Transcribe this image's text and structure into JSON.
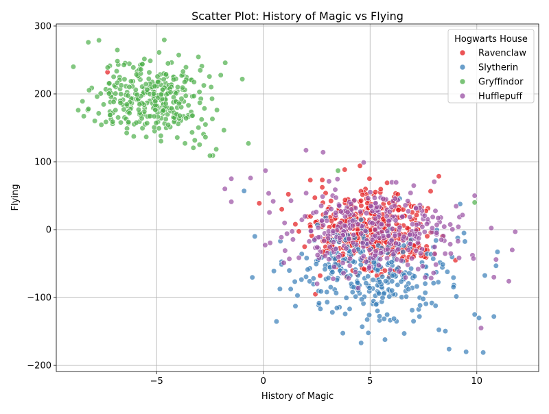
{
  "chart_data": {
    "type": "scatter",
    "title": "Scatter Plot: History of Magic vs Flying",
    "xlabel": "History of Magic",
    "ylabel": "Flying",
    "xlim": [
      -9.7,
      12.9
    ],
    "ylim": [
      -209,
      303
    ],
    "xticks": [
      -5,
      0,
      5,
      10
    ],
    "xtick_labels": [
      "−5",
      "0",
      "5",
      "10"
    ],
    "yticks": [
      -200,
      -100,
      0,
      100,
      200,
      300
    ],
    "ytick_labels": [
      "−200",
      "−100",
      "0",
      "100",
      "200",
      "300"
    ],
    "grid": true,
    "legend": {
      "title": "Hogwarts House",
      "placement": "top-right"
    },
    "series": [
      {
        "name": "Ravenclaw",
        "color": "#e41a1c",
        "clusters": [
          {
            "center": [
              5.0,
              -5.0
            ],
            "spread": [
              1.3,
              30.0
            ],
            "count": 420
          }
        ],
        "points": [
          [
            -7.3,
            232
          ],
          [
            1.5,
            8
          ],
          [
            2.2,
            73
          ],
          [
            9.0,
            -45
          ],
          [
            3.9,
            -70
          ],
          [
            6.3,
            52
          ]
        ]
      },
      {
        "name": "Slytherin",
        "color": "#377eb8",
        "clusters": [
          {
            "center": [
              5.0,
              -65.0
            ],
            "spread": [
              1.9,
              35.0
            ],
            "count": 300
          }
        ],
        "points": [
          [
            -0.9,
            57
          ],
          [
            -0.4,
            -10
          ],
          [
            1.6,
            -97
          ],
          [
            5.7,
            -162
          ],
          [
            9.5,
            -180
          ],
          [
            10.3,
            -181
          ],
          [
            8.7,
            -176
          ],
          [
            10.8,
            -128
          ],
          [
            9.9,
            -125
          ],
          [
            9.4,
            -5
          ],
          [
            6.6,
            -153
          ],
          [
            0.8,
            -17
          ]
        ]
      },
      {
        "name": "Gryffindor",
        "color": "#4daf4a",
        "clusters": [
          {
            "center": [
              -5.0,
              195.0
            ],
            "spread": [
              1.3,
              30.0
            ],
            "count": 330
          }
        ],
        "points": [
          [
            -8.2,
            276
          ],
          [
            -7.7,
            279
          ],
          [
            -8.9,
            240
          ],
          [
            -0.7,
            127
          ],
          [
            -2.5,
            109
          ],
          [
            9.9,
            40
          ],
          [
            3.5,
            87
          ]
        ]
      },
      {
        "name": "Hufflepuff",
        "color": "#984ea3",
        "clusters": [
          {
            "center": [
              5.0,
              0.0
            ],
            "spread": [
              2.0,
              33.0
            ],
            "count": 330
          }
        ],
        "points": [
          [
            -1.5,
            75
          ],
          [
            -1.5,
            41
          ],
          [
            -1.8,
            60
          ],
          [
            -0.6,
            76
          ],
          [
            2.0,
            117
          ],
          [
            2.8,
            114
          ],
          [
            4.7,
            99
          ],
          [
            11.8,
            -3
          ],
          [
            11.5,
            -76
          ],
          [
            10.2,
            -145
          ],
          [
            10.8,
            -70
          ],
          [
            10.9,
            -44
          ],
          [
            9.9,
            50
          ],
          [
            0.1,
            87
          ]
        ]
      }
    ]
  }
}
